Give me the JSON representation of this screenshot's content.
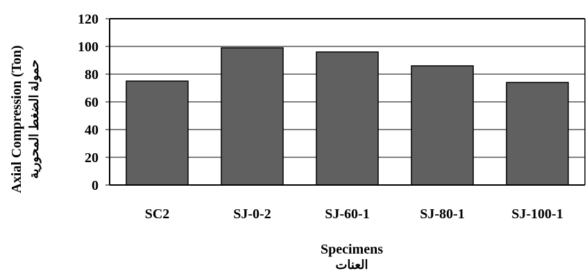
{
  "chart_data": {
    "type": "bar",
    "title": "",
    "categories": [
      "SC2",
      "SJ-0-2",
      "SJ-60-1",
      "SJ-80-1",
      "SJ-100-1"
    ],
    "values": [
      75,
      99,
      96,
      86,
      74
    ],
    "xlabel": "Specimens",
    "xlabel_secondary": "العنات",
    "ylabel": "Axial Compression (Ton)",
    "ylabel_secondary": "حمولة الضغط المحورية",
    "ylim": [
      0,
      120
    ],
    "yticks": [
      0,
      20,
      40,
      60,
      80,
      100,
      120
    ],
    "grid": true,
    "legend": "none",
    "colors": {
      "bar_fill": "#606060",
      "bar_stroke": "#000000",
      "grid": "#000000",
      "axis": "#000000"
    }
  }
}
